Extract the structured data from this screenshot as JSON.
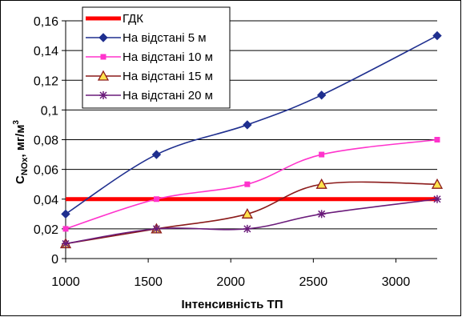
{
  "chart_data": {
    "type": "line",
    "title": "",
    "xlabel": "Інтенсивність ТП",
    "ylabel": {
      "main": "C",
      "sub": "NOx",
      "rest": ", мг/м",
      "sup": "3"
    },
    "xlim": [
      1000,
      3250
    ],
    "ylim": [
      0,
      0.16
    ],
    "xticks": [
      1000,
      1500,
      2000,
      2500,
      3000
    ],
    "yticks": [
      0,
      0.02,
      0.04,
      0.06,
      0.08,
      0.1,
      0.12,
      0.14,
      0.16
    ],
    "ytick_labels": [
      "0",
      "0,02",
      "0,04",
      "0,06",
      "0,08",
      "0,1",
      "0,12",
      "0,14",
      "0,16"
    ],
    "grid": "horizontal",
    "legend_position": "top-left",
    "reference_line": {
      "name": "ГДК",
      "value": 0.04,
      "color": "#ff0000"
    },
    "series": [
      {
        "name": "На відстані 5 м",
        "color": "#1f2f8f",
        "marker": "diamond",
        "x": [
          1000,
          1550,
          2100,
          2550,
          3250
        ],
        "values": [
          0.03,
          0.07,
          0.09,
          0.11,
          0.15
        ]
      },
      {
        "name": "На відстані 10 м",
        "color": "#ff33cc",
        "marker": "square",
        "x": [
          1000,
          1550,
          2100,
          2550,
          3250
        ],
        "values": [
          0.02,
          0.04,
          0.05,
          0.07,
          0.08
        ]
      },
      {
        "name": "На відстані 15 м",
        "color": "#8b1a1a",
        "marker": "triangle",
        "x": [
          1000,
          1550,
          2100,
          2550,
          3250
        ],
        "values": [
          0.01,
          0.02,
          0.03,
          0.05,
          0.05
        ]
      },
      {
        "name": "На відстані 20 м",
        "color": "#6a1b7a",
        "marker": "asterisk",
        "x": [
          1000,
          1550,
          2100,
          2550,
          3250
        ],
        "values": [
          0.01,
          0.02,
          0.02,
          0.03,
          0.04
        ]
      }
    ]
  }
}
